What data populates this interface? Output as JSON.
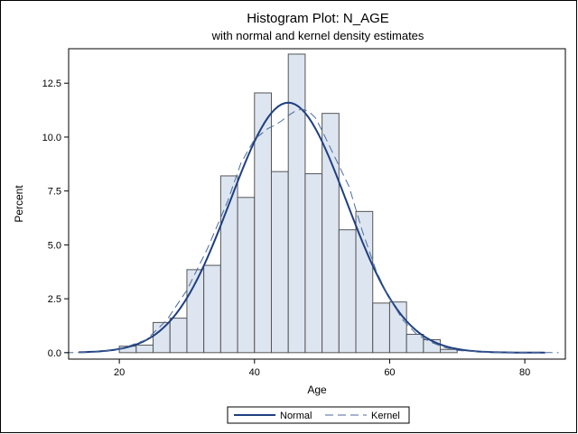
{
  "chart_data": {
    "type": "histogram",
    "title": "Histogram Plot: N_AGE",
    "subtitle": "with normal and kernel density estimates",
    "xlabel": "Age",
    "ylabel": "Percent",
    "xlim": [
      12.5,
      86
    ],
    "ylim": [
      -0.3,
      14.1
    ],
    "x_ticks": [
      20,
      40,
      60,
      80
    ],
    "x_tick_labels": [
      "20",
      "40",
      "60",
      "80"
    ],
    "y_ticks": [
      0.0,
      2.5,
      5.0,
      7.5,
      10.0,
      12.5
    ],
    "y_tick_labels": [
      "0.0",
      "2.5",
      "5.0",
      "7.5",
      "10.0",
      "12.5"
    ],
    "bin_width": 2.5,
    "bins": [
      {
        "start": 20.0,
        "value": 0.3
      },
      {
        "start": 22.5,
        "value": 0.35
      },
      {
        "start": 25.0,
        "value": 1.4
      },
      {
        "start": 27.5,
        "value": 1.6
      },
      {
        "start": 30.0,
        "value": 3.85
      },
      {
        "start": 32.5,
        "value": 4.05
      },
      {
        "start": 35.0,
        "value": 8.2
      },
      {
        "start": 37.5,
        "value": 7.2
      },
      {
        "start": 40.0,
        "value": 12.05
      },
      {
        "start": 42.5,
        "value": 8.4
      },
      {
        "start": 45.0,
        "value": 13.85
      },
      {
        "start": 47.5,
        "value": 8.3
      },
      {
        "start": 50.0,
        "value": 11.1
      },
      {
        "start": 52.5,
        "value": 5.7
      },
      {
        "start": 55.0,
        "value": 6.55
      },
      {
        "start": 57.5,
        "value": 2.3
      },
      {
        "start": 60.0,
        "value": 2.35
      },
      {
        "start": 62.5,
        "value": 0.85
      },
      {
        "start": 65.0,
        "value": 0.6
      },
      {
        "start": 67.5,
        "value": 0.15
      }
    ],
    "normal_curve": {
      "label": "Normal",
      "mean": 45.0,
      "std": 8.6,
      "scale": 250,
      "color": "#1f3f7f"
    },
    "kernel_curve": {
      "label": "Kernel",
      "color": "#4a6a9a",
      "points": [
        [
          12,
          0.0
        ],
        [
          16,
          0.02
        ],
        [
          20,
          0.15
        ],
        [
          24,
          0.6
        ],
        [
          27,
          1.5
        ],
        [
          30,
          2.9
        ],
        [
          33,
          4.8
        ],
        [
          36,
          7.0
        ],
        [
          38,
          8.8
        ],
        [
          40,
          9.9
        ],
        [
          42,
          10.4
        ],
        [
          43,
          10.55
        ],
        [
          44,
          10.75
        ],
        [
          45,
          11.0
        ],
        [
          46,
          11.2
        ],
        [
          47,
          11.3
        ],
        [
          48,
          11.2
        ],
        [
          49,
          10.9
        ],
        [
          50,
          10.3
        ],
        [
          52,
          9.0
        ],
        [
          54,
          7.7
        ],
        [
          56,
          5.6
        ],
        [
          58,
          3.8
        ],
        [
          60,
          2.5
        ],
        [
          62,
          1.5
        ],
        [
          64,
          0.85
        ],
        [
          66,
          0.5
        ],
        [
          68,
          0.25
        ],
        [
          70,
          0.1
        ],
        [
          75,
          0.02
        ],
        [
          85,
          0.0
        ]
      ]
    },
    "bar_fill": "#dde5f1",
    "bar_stroke": "#555555",
    "grid": false,
    "legend_position": "bottom-center"
  }
}
